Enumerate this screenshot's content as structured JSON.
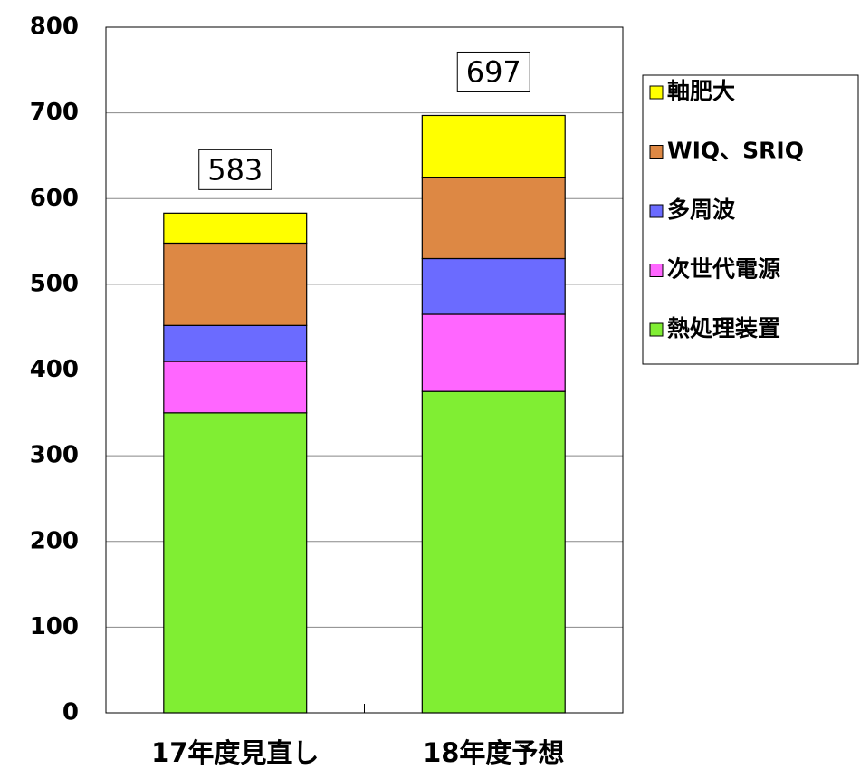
{
  "chart_data": {
    "type": "stacked_bar",
    "categories": [
      "17年度見直し",
      "18年度予想"
    ],
    "series": [
      {
        "name": "熱処理装置",
        "color": "#80ee33",
        "values": [
          350,
          375
        ]
      },
      {
        "name": "次世代電源",
        "color": "#ff66ff",
        "values": [
          60,
          90
        ]
      },
      {
        "name": "多周波",
        "color": "#6b6bff",
        "values": [
          42,
          65
        ]
      },
      {
        "name": "WIQ、SRIQ",
        "color": "#dd8844",
        "values": [
          96,
          95
        ]
      },
      {
        "name": "軸肥大",
        "color": "#ffff00",
        "values": [
          35,
          72
        ]
      }
    ],
    "totals": [
      583,
      697
    ],
    "ylim": [
      0,
      800
    ],
    "yticks": [
      0,
      100,
      200,
      300,
      400,
      500,
      600,
      700,
      800
    ],
    "grid": true,
    "legend": "right"
  }
}
